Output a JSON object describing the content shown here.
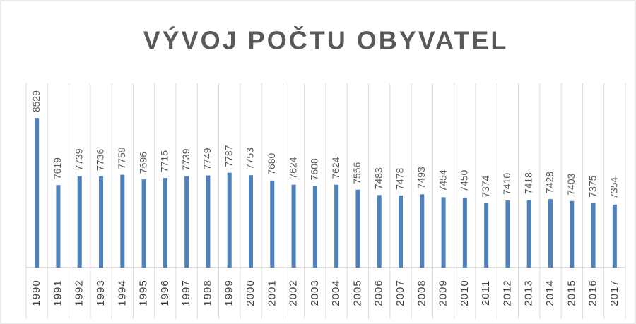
{
  "chart_data": {
    "type": "bar",
    "title": "VÝVOJ POČTU OBYVATEL",
    "categories": [
      "1990",
      "1991",
      "1992",
      "1993",
      "1994",
      "1995",
      "1996",
      "1997",
      "1998",
      "1999",
      "2000",
      "2001",
      "2002",
      "2003",
      "2004",
      "2005",
      "2006",
      "2007",
      "2008",
      "2009",
      "2010",
      "2011",
      "2012",
      "2013",
      "2014",
      "2015",
      "2016",
      "2017"
    ],
    "values": [
      8529,
      7619,
      7739,
      7736,
      7759,
      7696,
      7715,
      7739,
      7749,
      7787,
      7753,
      7680,
      7624,
      7608,
      7624,
      7556,
      7483,
      7478,
      7493,
      7454,
      7450,
      7374,
      7410,
      7418,
      7428,
      7403,
      7375,
      7354
    ],
    "color": "#4f81bd",
    "ylim": [
      6500,
      9000
    ],
    "data_labels": true
  }
}
